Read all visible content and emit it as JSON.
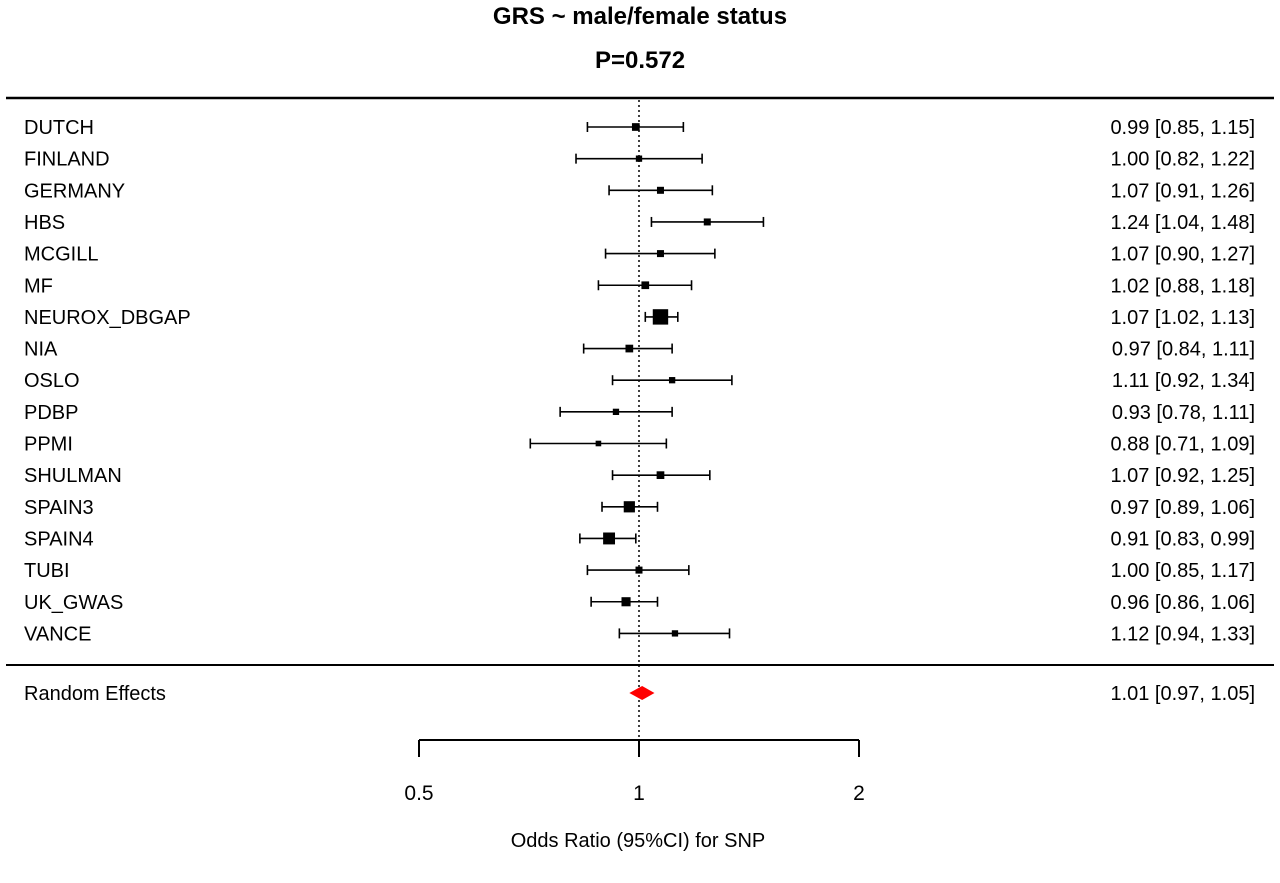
{
  "chart_data": {
    "type": "forest",
    "title": "GRS ~ male/female status",
    "subtitle": "P=0.572",
    "xlabel": "Odds Ratio (95%CI) for SNP",
    "x_scale": "log",
    "xlim": [
      0.5,
      2
    ],
    "reference_line": 1,
    "ticks": [
      {
        "value": 0.5,
        "label": "0.5"
      },
      {
        "value": 1,
        "label": "1"
      },
      {
        "value": 2,
        "label": "2"
      }
    ],
    "studies": [
      {
        "name": "DUTCH",
        "or": 0.99,
        "lower": 0.85,
        "upper": 1.15,
        "label": "0.99 [0.85, 1.15]",
        "weight": 1.1
      },
      {
        "name": "FINLAND",
        "or": 1.0,
        "lower": 0.82,
        "upper": 1.22,
        "label": "1.00 [0.82, 1.22]",
        "weight": 0.9
      },
      {
        "name": "GERMANY",
        "or": 1.07,
        "lower": 0.91,
        "upper": 1.26,
        "label": "1.07 [0.91, 1.26]",
        "weight": 1.0
      },
      {
        "name": "HBS",
        "or": 1.24,
        "lower": 1.04,
        "upper": 1.48,
        "label": "1.24 [1.04, 1.48]",
        "weight": 1.0
      },
      {
        "name": "MCGILL",
        "or": 1.07,
        "lower": 0.9,
        "upper": 1.27,
        "label": "1.07 [0.90, 1.27]",
        "weight": 1.0
      },
      {
        "name": "MF",
        "or": 1.02,
        "lower": 0.88,
        "upper": 1.18,
        "label": "1.02 [0.88, 1.18]",
        "weight": 1.1
      },
      {
        "name": "NEUROX_DBGAP",
        "or": 1.07,
        "lower": 1.02,
        "upper": 1.13,
        "label": "1.07 [1.02, 1.13]",
        "weight": 2.2
      },
      {
        "name": "NIA",
        "or": 0.97,
        "lower": 0.84,
        "upper": 1.11,
        "label": "0.97 [0.84, 1.11]",
        "weight": 1.1
      },
      {
        "name": "OSLO",
        "or": 1.11,
        "lower": 0.92,
        "upper": 1.34,
        "label": "1.11 [0.92, 1.34]",
        "weight": 0.9
      },
      {
        "name": "PDBP",
        "or": 0.93,
        "lower": 0.78,
        "upper": 1.11,
        "label": "0.93 [0.78, 1.11]",
        "weight": 0.9
      },
      {
        "name": "PPMI",
        "or": 0.88,
        "lower": 0.71,
        "upper": 1.09,
        "label": "0.88 [0.71, 1.09]",
        "weight": 0.8
      },
      {
        "name": "SHULMAN",
        "or": 1.07,
        "lower": 0.92,
        "upper": 1.25,
        "label": "1.07 [0.92, 1.25]",
        "weight": 1.1
      },
      {
        "name": "SPAIN3",
        "or": 0.97,
        "lower": 0.89,
        "upper": 1.06,
        "label": "0.97 [0.89, 1.06]",
        "weight": 1.6
      },
      {
        "name": "SPAIN4",
        "or": 0.91,
        "lower": 0.83,
        "upper": 0.99,
        "label": "0.91 [0.83, 0.99]",
        "weight": 1.7
      },
      {
        "name": "TUBI",
        "or": 1.0,
        "lower": 0.85,
        "upper": 1.17,
        "label": "1.00 [0.85, 1.17]",
        "weight": 1.0
      },
      {
        "name": "UK_GWAS",
        "or": 0.96,
        "lower": 0.86,
        "upper": 1.06,
        "label": "0.96 [0.86, 1.06]",
        "weight": 1.3
      },
      {
        "name": "VANCE",
        "or": 1.12,
        "lower": 0.94,
        "upper": 1.33,
        "label": "1.12 [0.94, 1.33]",
        "weight": 0.9
      }
    ],
    "summary": {
      "name": "Random Effects",
      "or": 1.01,
      "lower": 0.97,
      "upper": 1.05,
      "label": "1.01 [0.97, 1.05]",
      "color": "#ff0000"
    }
  }
}
